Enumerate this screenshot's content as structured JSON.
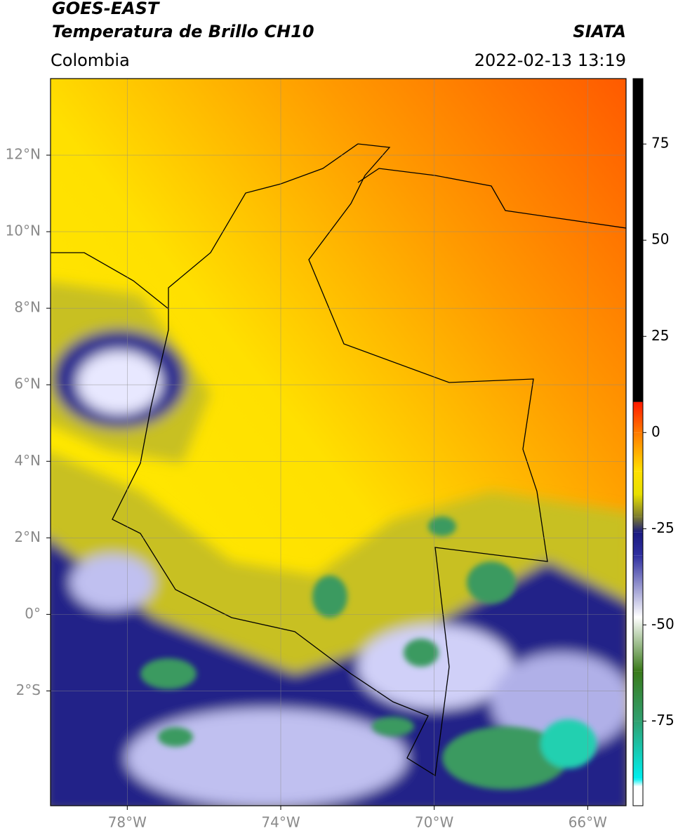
{
  "header": {
    "title_line1": "GOES-EAST",
    "title_line2": "Temperatura de Brillo CH10",
    "source": "SIATA",
    "region": "Colombia",
    "datetime": "2022-02-13 13:19"
  },
  "map": {
    "xlim": [
      -80,
      -65
    ],
    "ylim": [
      -5,
      14
    ],
    "xticks": [
      {
        "value": -78,
        "label": "78°W"
      },
      {
        "value": -74,
        "label": "74°W"
      },
      {
        "value": -70,
        "label": "70°W"
      },
      {
        "value": -66,
        "label": "66°W"
      }
    ],
    "yticks": [
      {
        "value": 12,
        "label": "12°N"
      },
      {
        "value": 10,
        "label": "10°N"
      },
      {
        "value": 8,
        "label": "8°N"
      },
      {
        "value": 6,
        "label": "6°N"
      },
      {
        "value": 4,
        "label": "4°N"
      },
      {
        "value": 2,
        "label": "2°N"
      },
      {
        "value": 0,
        "label": "0°"
      },
      {
        "value": -2,
        "label": "2°S"
      }
    ],
    "grid": true
  },
  "colorbar": {
    "lim": [
      -97,
      92
    ],
    "ticks": [
      75,
      50,
      25,
      0,
      -25,
      -50,
      -75
    ],
    "colormap": [
      {
        "value": 92,
        "color": "#000000"
      },
      {
        "value": 8,
        "color": "#000000"
      },
      {
        "value": 7.9,
        "color": "#ff1a00"
      },
      {
        "value": 0,
        "color": "#ff7a00"
      },
      {
        "value": -10,
        "color": "#ffe000"
      },
      {
        "value": -16,
        "color": "#e8e000"
      },
      {
        "value": -22,
        "color": "#7a7a30"
      },
      {
        "value": -26,
        "color": "#1a1a80"
      },
      {
        "value": -32,
        "color": "#3030a0"
      },
      {
        "value": -48,
        "color": "#ffffff"
      },
      {
        "value": -62,
        "color": "#3a7a1a"
      },
      {
        "value": -75,
        "color": "#30a070"
      },
      {
        "value": -90,
        "color": "#00f0f0"
      },
      {
        "value": -92,
        "color": "#ffffff"
      },
      {
        "value": -97,
        "color": "#ffffff"
      }
    ]
  }
}
